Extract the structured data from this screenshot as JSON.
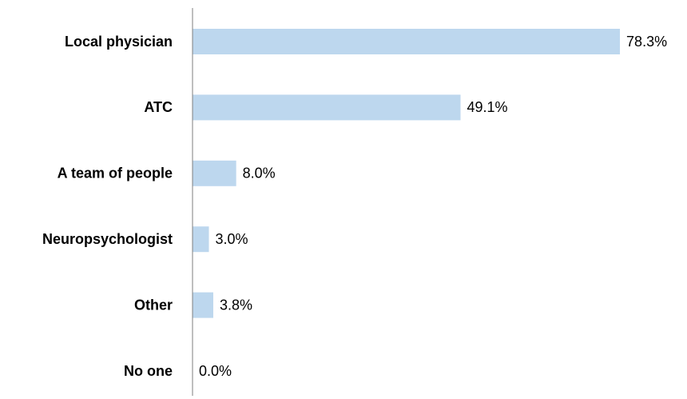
{
  "chart_data": {
    "type": "bar",
    "orientation": "horizontal",
    "categories": [
      "Local physician",
      "ATC",
      "A team of people",
      "Neuropsychologist",
      "Other",
      "No one"
    ],
    "values": [
      78.3,
      49.1,
      8.0,
      3.0,
      3.8,
      0.0
    ],
    "value_labels": [
      "78.3%",
      "49.1%",
      "8.0%",
      "3.0%",
      "3.8%",
      "0.0%"
    ],
    "color": "#bdd7ee",
    "xlim": [
      0,
      90
    ]
  }
}
